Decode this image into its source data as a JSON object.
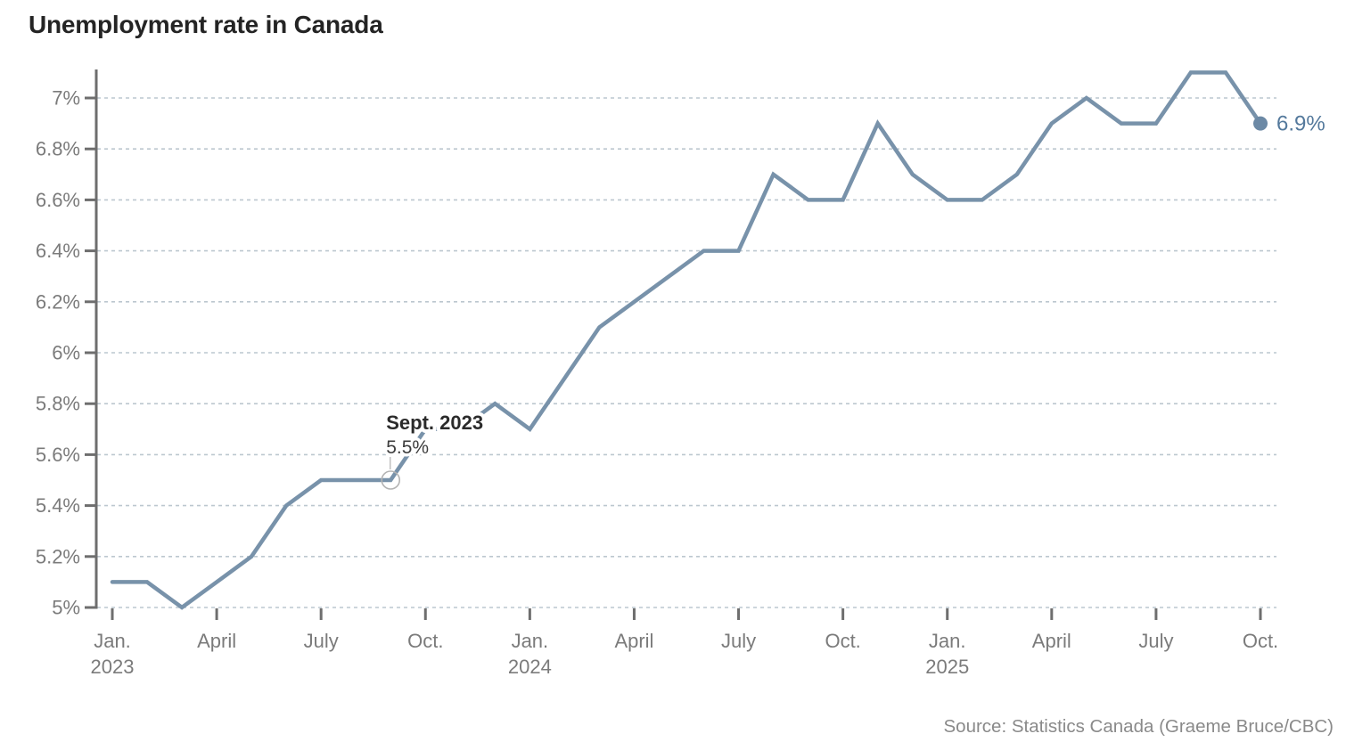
{
  "page": {
    "title": "Unemployment rate in Canada",
    "source": "Source: Statistics Canada (Graeme Bruce/CBC)"
  },
  "colors": {
    "line": "#7892aa",
    "end_dot": "#6c89a5",
    "end_label": "#54799c",
    "grid": "#bcc7cf",
    "axis": "#6e6e6e",
    "tick_label": "#7b7b7b",
    "annotation_title": "#2b2b2b",
    "annotation_value": "#3d3d3d",
    "annotation_connector": "#c0c0c0",
    "annotation_circle": "#b3b3b3",
    "title": "#242424",
    "source": "#8a8a8a"
  },
  "chart_data": {
    "type": "line",
    "title": "Unemployment rate in Canada",
    "x": [
      "Jan 2023",
      "Feb 2023",
      "Mar 2023",
      "Apr 2023",
      "May 2023",
      "Jun 2023",
      "Jul 2023",
      "Aug 2023",
      "Sep 2023",
      "Oct 2023",
      "Nov 2023",
      "Dec 2023",
      "Jan 2024",
      "Feb 2024",
      "Mar 2024",
      "Apr 2024",
      "May 2024",
      "Jun 2024",
      "Jul 2024",
      "Aug 2024",
      "Sep 2024",
      "Oct 2024",
      "Nov 2024",
      "Dec 2024",
      "Jan 2025",
      "Feb 2025",
      "Mar 2025",
      "Apr 2025",
      "May 2025",
      "Jun 2025",
      "Jul 2025",
      "Aug 2025",
      "Sep 2025",
      "Oct 2025"
    ],
    "values": [
      5.1,
      5.1,
      5.0,
      5.1,
      5.2,
      5.4,
      5.5,
      5.5,
      5.5,
      5.7,
      5.7,
      5.8,
      5.7,
      5.9,
      6.1,
      6.2,
      6.3,
      6.4,
      6.4,
      6.7,
      6.6,
      6.6,
      6.9,
      6.7,
      6.6,
      6.6,
      6.7,
      6.9,
      7.0,
      6.9,
      6.9,
      7.1,
      7.1,
      6.9
    ],
    "ylabel": "",
    "xlabel": "",
    "ylim": [
      5,
      7.15
    ],
    "grid": "horizontal-dashed",
    "legend": "none",
    "y_ticks": [
      {
        "value": 7.0,
        "label": "7%"
      },
      {
        "value": 6.8,
        "label": "6.8%"
      },
      {
        "value": 6.6,
        "label": "6.6%"
      },
      {
        "value": 6.4,
        "label": "6.4%"
      },
      {
        "value": 6.2,
        "label": "6.2%"
      },
      {
        "value": 6.0,
        "label": "6%"
      },
      {
        "value": 5.8,
        "label": "5.8%"
      },
      {
        "value": 5.6,
        "label": "5.6%"
      },
      {
        "value": 5.4,
        "label": "5.4%"
      },
      {
        "value": 5.2,
        "label": "5.2%"
      },
      {
        "value": 5.0,
        "label": "5%"
      }
    ],
    "x_ticks": [
      {
        "index": 0,
        "label": "Jan.",
        "year": "2023"
      },
      {
        "index": 3,
        "label": "April"
      },
      {
        "index": 6,
        "label": "July"
      },
      {
        "index": 9,
        "label": "Oct."
      },
      {
        "index": 12,
        "label": "Jan.",
        "year": "2024"
      },
      {
        "index": 15,
        "label": "April"
      },
      {
        "index": 18,
        "label": "July"
      },
      {
        "index": 21,
        "label": "Oct."
      },
      {
        "index": 24,
        "label": "Jan.",
        "year": "2025"
      },
      {
        "index": 27,
        "label": "April"
      },
      {
        "index": 30,
        "label": "July"
      },
      {
        "index": 33,
        "label": "Oct."
      }
    ],
    "annotations": [
      {
        "type": "callout",
        "label": "Sept. 2023",
        "value_label": "5.5%",
        "index": 8,
        "value": 5.5
      },
      {
        "type": "end_label",
        "label": "6.9%",
        "index": 33,
        "value": 6.9
      }
    ]
  }
}
